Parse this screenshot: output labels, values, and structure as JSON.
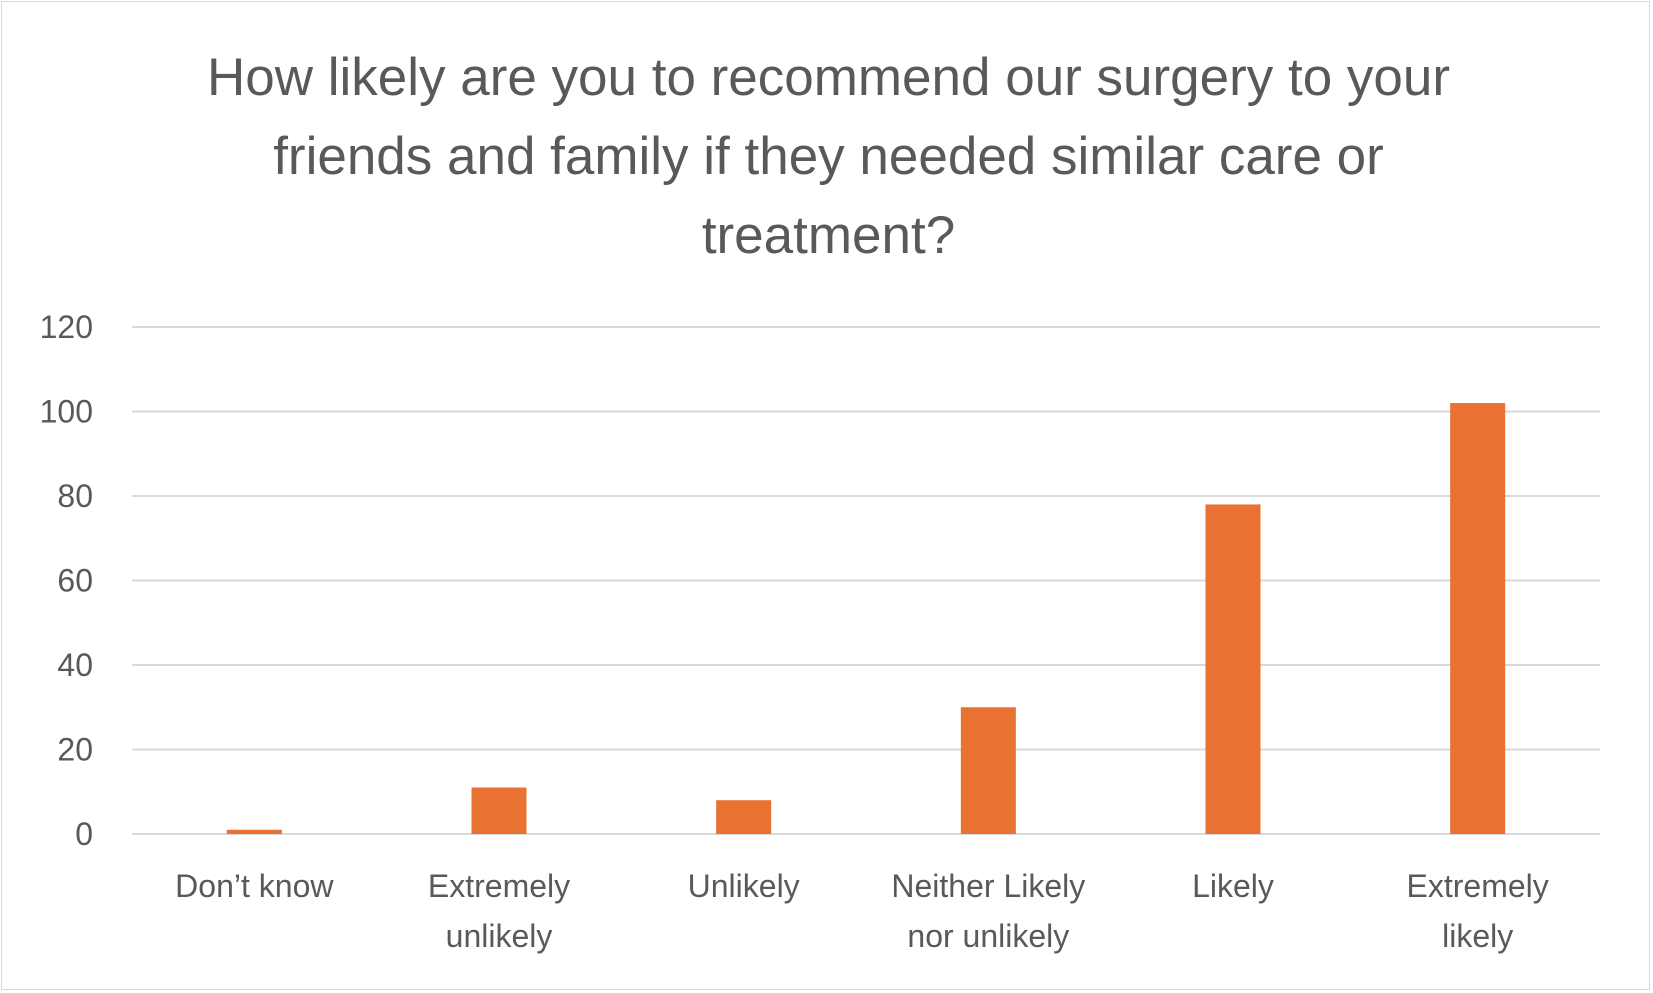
{
  "chart_data": {
    "type": "bar",
    "title": "How likely are you to recommend our surgery to your friends and family if they needed similar care or treatment?",
    "categories": [
      [
        "Don’t know"
      ],
      [
        "Extremely",
        "unlikely"
      ],
      [
        "Unlikely"
      ],
      [
        "Neither Likely",
        "nor unlikely"
      ],
      [
        "Likely"
      ],
      [
        "Extremely",
        "likely"
      ]
    ],
    "values": [
      1,
      11,
      8,
      30,
      78,
      102
    ],
    "yticks": [
      "0",
      "20",
      "40",
      "60",
      "80",
      "100",
      "120"
    ],
    "ylim": [
      0,
      120
    ],
    "grid": true,
    "legend": "none",
    "colors": {
      "bar": "#E97132",
      "grid": "#D9D9D9",
      "text": "#595959",
      "border": "#D9D9D9"
    }
  }
}
